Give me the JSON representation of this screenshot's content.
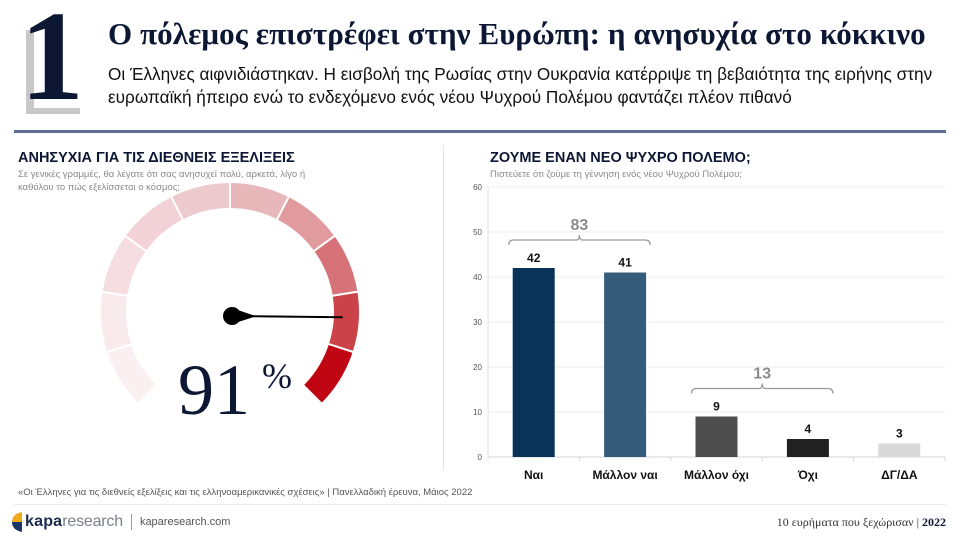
{
  "header": {
    "number": "1",
    "title": "Ο πόλεμος επιστρέφει στην Ευρώπη: η ανησυχία στο κόκκινο",
    "subtitle": "Οι Έλληνες αιφνιδιάστηκαν. Η εισβολή της Ρωσίας στην Ουκρανία κατέρριψε τη βεβαιότητα της ειρήνης στην ευρωπαϊκή ήπειρο ενώ το ενδεχόμενο ενός νέου Ψυχρού Πολέμου φαντάζει πλέον πιθανό"
  },
  "left_section": {
    "title": "ΑΝΗΣΥΧΙΑ ΓΙΑ ΤΙΣ ΔΙΕΘΝΕΙΣ ΕΞΕΛΙΞΕΙΣ",
    "question": "Σε γενικές γραμμές, θα λέγατε ότι σας ανησυχεί πολύ, αρκετά, λίγο ή καθόλου το πώς εξελίσσεται ο κόσμος;",
    "gauge_value_text": "91",
    "gauge_unit": "%"
  },
  "right_section": {
    "title": "ΖΟΥΜΕ ΕΝΑΝ ΝΕΟ ΨΥΧΡΟ ΠΟΛΕΜΟ;",
    "question": "Πιστεύετε ότι ζούμε τη γέννηση ενός νέου Ψυχρού Πολέμου;"
  },
  "chart_data": [
    {
      "type": "gauge",
      "title": "ΑΝΗΣΥΧΙΑ ΓΙΑ ΤΙΣ ΔΙΕΘΝΕΙΣ ΕΞΕΛΙΞΕΙΣ",
      "value": 91,
      "range": [
        0,
        100
      ],
      "segments": 10,
      "segment_colors": [
        "#faf0f2",
        "#f8e9ec",
        "#f5dde1",
        "#f2d2d6",
        "#eccacd",
        "#e8b7ba",
        "#e19a9e",
        "#d77278",
        "#cc4249",
        "#c00612"
      ],
      "label": "91%"
    },
    {
      "type": "bar",
      "title": "ΖΟΥΜΕ ΕΝΑΝ ΝΕΟ ΨΥΧΡΟ ΠΟΛΕΜΟ;",
      "subtitle": "Πιστεύετε ότι ζούμε τη γέννηση ενός νέου Ψυχρού Πολέμου;",
      "categories": [
        "Ναι",
        "Μάλλον ναι",
        "Μάλλον όχι",
        "Όχι",
        "ΔΓ/ΔΑ"
      ],
      "values": [
        42,
        41,
        9,
        4,
        3
      ],
      "colors": [
        "#0a3358",
        "#355b7a",
        "#4d4d4d",
        "#222222",
        "#d9d9d9"
      ],
      "ylim": [
        0,
        60
      ],
      "yticks": [
        0,
        10,
        20,
        30,
        40,
        50,
        60
      ],
      "grid": true,
      "xlabel": "",
      "ylabel": "",
      "annotations": [
        {
          "label": "83",
          "span": [
            0,
            1
          ],
          "value": 83
        },
        {
          "label": "13",
          "span": [
            2,
            3
          ],
          "value": 13
        }
      ]
    }
  ],
  "footer": {
    "source": "«Οι Έλληνες για τις διεθνείς εξελίξεις και τις ελληνοαμερικανικές σχέσεις» | Πανελλαδική έρευνα, Μάιος 2022",
    "logo_bold": "kapa",
    "logo_light": "research",
    "url": "kaparesearch.com",
    "series_title": "10 ευρήματα που ξεχώρισαν",
    "year": "2022"
  }
}
